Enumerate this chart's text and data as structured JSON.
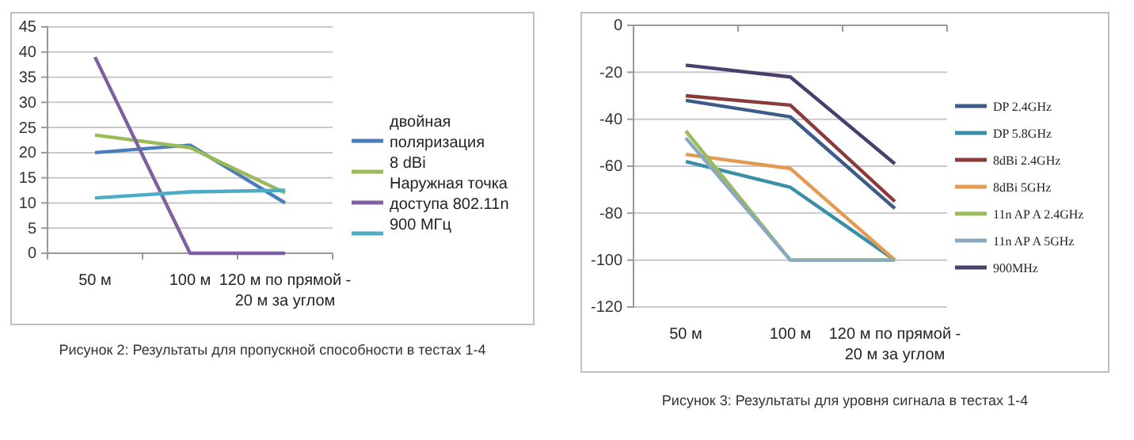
{
  "chart_data": [
    {
      "type": "line",
      "categories": [
        "50 м",
        "100 м",
        "120 м по прямой - 20 м за углом"
      ],
      "ylim": [
        0,
        45
      ],
      "yticks": [
        0,
        5,
        10,
        15,
        20,
        25,
        30,
        35,
        40,
        45
      ],
      "grid": "y",
      "legend": "right",
      "annotations": [
        "Рисунок 2: Результаты для пропускной способности в тестах 1-4"
      ],
      "series": [
        {
          "name": "двойная поляризация",
          "color": "#4a7ebb",
          "values": [
            20,
            21.5,
            10
          ]
        },
        {
          "name": "8 dBi",
          "color": "#9bbb59",
          "values": [
            23.5,
            21,
            12
          ]
        },
        {
          "name": "Наружная точка доступа 802.11n",
          "color": "#7d60a0",
          "values": [
            39,
            0,
            0
          ]
        },
        {
          "name": "900 МГц",
          "color": "#4bacc6",
          "values": [
            11,
            12.2,
            12.5
          ]
        }
      ]
    },
    {
      "type": "line",
      "categories": [
        "50 м",
        "100 м",
        "120 м по прямой - 20 м за углом"
      ],
      "ylim": [
        -120,
        0
      ],
      "yticks": [
        -120,
        -100,
        -80,
        -60,
        -40,
        -20,
        0
      ],
      "grid": "y",
      "legend": "right",
      "annotations": [
        "Рисунок 3: Результаты для уровня сигнала в тестах 1-4"
      ],
      "series": [
        {
          "name": "DP 2.4GHz",
          "color": "#3e5c8a",
          "values": [
            -32,
            -39,
            -78
          ]
        },
        {
          "name": "DP 5.8GHz",
          "color": "#3a8fa8",
          "values": [
            -58,
            -69,
            -100
          ]
        },
        {
          "name": "8dBi 2.4GHz",
          "color": "#8b3a3a",
          "values": [
            -30,
            -34,
            -75
          ]
        },
        {
          "name": "8dBi 5GHz",
          "color": "#e49a50",
          "values": [
            -55,
            -61,
            -100
          ]
        },
        {
          "name": "11n AP A 2.4GHz",
          "color": "#9bbb59",
          "values": [
            -45,
            -100,
            -100
          ]
        },
        {
          "name": "11n AP A 5GHz",
          "color": "#8aa8c0",
          "values": [
            -48,
            -100,
            -100
          ]
        },
        {
          "name": "900MHz",
          "color": "#4b3d6e",
          "values": [
            -17,
            -22,
            -59
          ]
        }
      ]
    }
  ]
}
